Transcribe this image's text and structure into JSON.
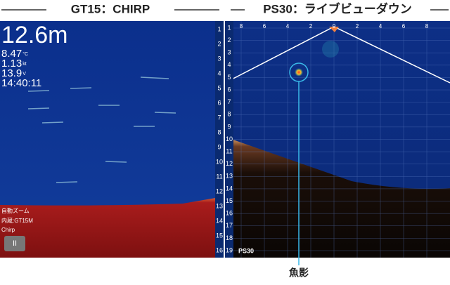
{
  "header": {
    "left_title": "GT15：CHIRP",
    "right_title": "PS30：ライブビューダウン"
  },
  "left_panel": {
    "depth": "12.6m",
    "readouts": [
      {
        "value": "8.47",
        "unit": "°C"
      },
      {
        "value": "1.13",
        "unit": "kt"
      },
      {
        "value": "13.9",
        "unit": "V"
      },
      {
        "value": "14:40:11",
        "unit": ""
      }
    ],
    "depth_scale": [
      "1",
      "2",
      "3",
      "4",
      "5",
      "6",
      "7",
      "8",
      "9",
      "10",
      "11",
      "12",
      "13",
      "14",
      "15",
      "16"
    ],
    "status": [
      "自動ズーム",
      "内蔵:GT15M",
      "Chirp"
    ],
    "pause_button": "II"
  },
  "right_panel": {
    "top_scale": [
      "8",
      "6",
      "4",
      "2",
      "0",
      "2",
      "4",
      "6",
      "8"
    ],
    "depth_scale": [
      "1",
      "2",
      "3",
      "4",
      "5",
      "6",
      "7",
      "8",
      "9",
      "10",
      "11",
      "12",
      "13",
      "14",
      "15",
      "16",
      "17",
      "18",
      "19"
    ],
    "label": "PS30"
  },
  "caption": "魚影"
}
